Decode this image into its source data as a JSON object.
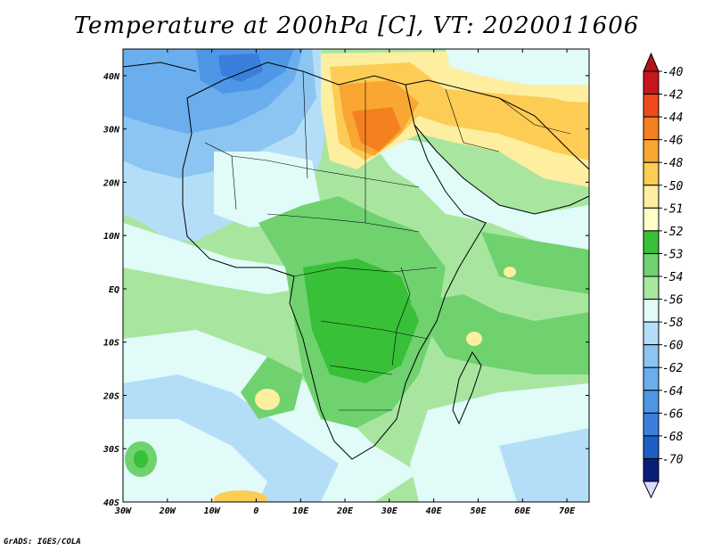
{
  "title": "Temperature at 200hPa [C], VT: 2020011606",
  "credit": "GrADS: IGES/COLA",
  "map": {
    "lon_ticks": [
      "30W",
      "20W",
      "10W",
      "0",
      "10E",
      "20E",
      "30E",
      "40E",
      "50E",
      "60E",
      "70E"
    ],
    "lat_ticks": [
      "40N",
      "30N",
      "20N",
      "10N",
      "EQ",
      "10S",
      "20S",
      "30S",
      "40S"
    ],
    "lon_range": [
      -30,
      75
    ],
    "lat_range": [
      -40,
      45
    ]
  },
  "colorbar": {
    "labels": [
      "-40",
      "-42",
      "-44",
      "-46",
      "-48",
      "-50",
      "-51",
      "-52",
      "-53",
      "-54",
      "-56",
      "-58",
      "-60",
      "-62",
      "-64",
      "-66",
      "-68",
      "-70"
    ],
    "colors": [
      "#c8151e",
      "#f04a1f",
      "#f5801f",
      "#f9a633",
      "#fccc55",
      "#fdeea0",
      "#ffffc8",
      "#38c038",
      "#6fd26f",
      "#a8e6a0",
      "#e0fbf8",
      "#b4def8",
      "#8cc5f2",
      "#6aaeee",
      "#4e97e6",
      "#3a7fdc",
      "#1e5ec8",
      "#0a1e7a"
    ],
    "top_cap_color": "#b41414",
    "bottom_cap_color": "#dcdcff"
  }
}
